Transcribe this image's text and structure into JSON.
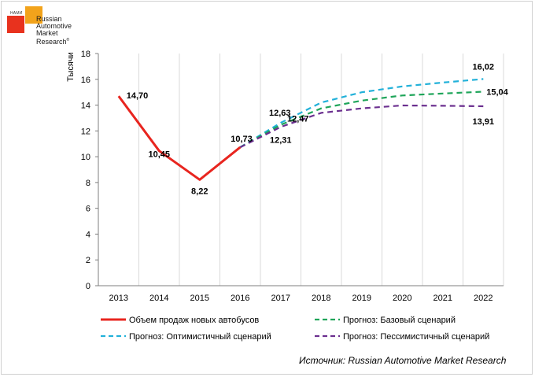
{
  "logo": {
    "small_text": "НАМИ",
    "brand_lines": [
      "Russian",
      "Automotive",
      "Market",
      "Research"
    ],
    "registered": "®"
  },
  "source": "Источник: Russian Automotive Market Research",
  "chart_data": {
    "type": "line",
    "ylabel": "Тысячи",
    "xlabel": "",
    "title": "",
    "ylim": [
      0,
      18
    ],
    "yticks": [
      0,
      2,
      4,
      6,
      8,
      10,
      12,
      14,
      16,
      18
    ],
    "categories": [
      "2013",
      "2014",
      "2015",
      "2016",
      "2017",
      "2018",
      "2019",
      "2020",
      "2021",
      "2022"
    ],
    "grid": "vertical",
    "legend_position": "bottom",
    "series": [
      {
        "name": "Объем продаж новых автобусов",
        "color": "#e8251f",
        "style": "solid",
        "values": [
          14.7,
          10.45,
          8.22,
          10.73,
          null,
          null,
          null,
          null,
          null,
          null
        ],
        "labels": [
          "14,70",
          "10,45",
          "8,22",
          "10,73",
          "",
          "",
          "",
          "",
          "",
          ""
        ]
      },
      {
        "name": "Прогноз: Оптимистичный сценарий",
        "color": "#22b1d9",
        "style": "dashed",
        "values": [
          null,
          null,
          null,
          10.73,
          12.63,
          14.2,
          15.0,
          15.45,
          15.75,
          16.02
        ],
        "labels": [
          "",
          "",
          "",
          "",
          "12,63",
          "",
          "",
          "",
          "",
          "16,02"
        ]
      },
      {
        "name": "Прогноз: Базовый сценарий",
        "color": "#1fa55a",
        "style": "dashed",
        "values": [
          null,
          null,
          null,
          10.73,
          12.47,
          13.75,
          14.35,
          14.75,
          14.9,
          15.04
        ],
        "labels": [
          "",
          "",
          "",
          "",
          "12,47",
          "",
          "",
          "",
          "",
          "15,04"
        ]
      },
      {
        "name": "Прогноз: Пессимистичный сценарий",
        "color": "#6b2f8f",
        "style": "dashed",
        "values": [
          null,
          null,
          null,
          10.73,
          12.31,
          13.4,
          13.75,
          13.97,
          13.95,
          13.91
        ],
        "labels": [
          "",
          "",
          "",
          "",
          "12,31",
          "",
          "",
          "",
          "",
          "13,91"
        ]
      }
    ]
  }
}
